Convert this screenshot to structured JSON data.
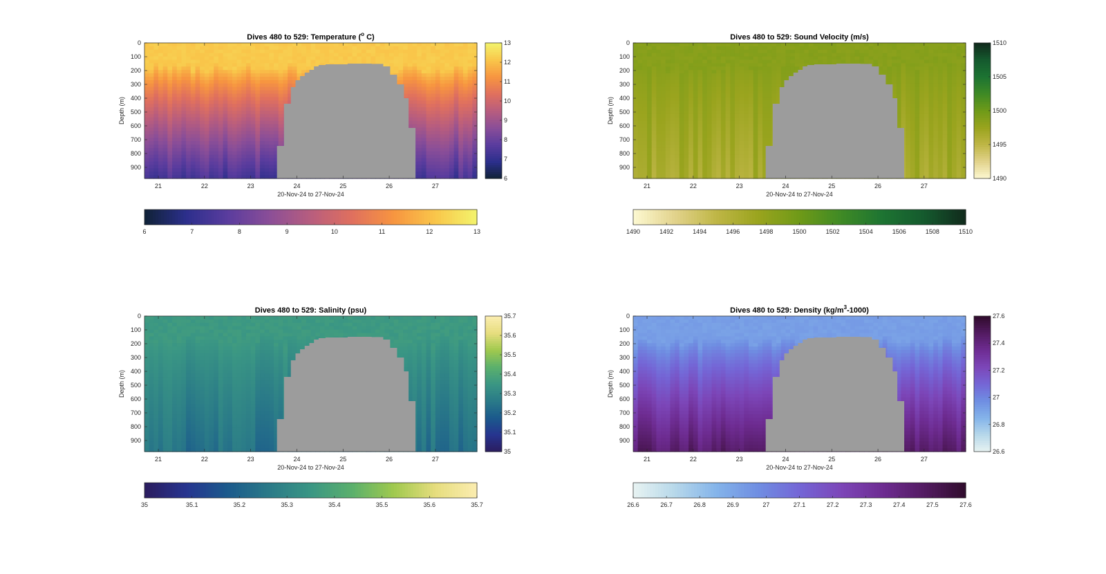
{
  "chart_data": [
    {
      "type": "heatmap",
      "title": "Dives 480 to 529: Temperature (",
      "title_degree": "o",
      "title_suffix": " C)",
      "xlabel": "20-Nov-24 to 27-Nov-24",
      "ylabel": "Depth (m)",
      "xlim": [
        20.7,
        27.9
      ],
      "ylim": [
        0,
        980
      ],
      "xticks": [
        21,
        22,
        23,
        24,
        25,
        26,
        27
      ],
      "yticks": [
        0,
        100,
        200,
        300,
        400,
        500,
        600,
        700,
        800,
        900
      ],
      "clim": [
        6,
        13
      ],
      "colorbar_right_ticks": [
        "6",
        "7",
        "8",
        "9",
        "10",
        "11",
        "12",
        "13"
      ],
      "colorbar_bottom_ticks": [
        "6",
        "7",
        "8",
        "9",
        "10",
        "11",
        "12",
        "13"
      ],
      "colormap": [
        "#0f2236",
        "#2c2f8c",
        "#5a3c9e",
        "#8a4e98",
        "#b85d7e",
        "#e0705e",
        "#f79540",
        "#f9c64a",
        "#f3f36c"
      ],
      "surface_value": 12.2,
      "mixed_layer_depth": 180,
      "deep_value": 7.4
    },
    {
      "type": "heatmap",
      "title": "Dives 480 to 529: Sound Velocity (m/s)",
      "xlabel": "20-Nov-24 to 27-Nov-24",
      "ylabel": "Depth (m)",
      "xlim": [
        20.7,
        27.9
      ],
      "ylim": [
        0,
        980
      ],
      "xticks": [
        21,
        22,
        23,
        24,
        25,
        26,
        27
      ],
      "yticks": [
        0,
        100,
        200,
        300,
        400,
        500,
        600,
        700,
        800,
        900
      ],
      "clim": [
        1490,
        1510
      ],
      "colorbar_right_ticks": [
        "1490",
        "1495",
        "1500",
        "1505",
        "1510"
      ],
      "colorbar_bottom_ticks": [
        "1490",
        "1492",
        "1494",
        "1496",
        "1498",
        "1500",
        "1502",
        "1504",
        "1506",
        "1508",
        "1510"
      ],
      "colormap": [
        "#fdf9d2",
        "#e2d38c",
        "#bfb646",
        "#9aa41e",
        "#6f9a18",
        "#3f8a25",
        "#1d7432",
        "#155a2e",
        "#112a1c"
      ],
      "surface_value": 1498.6,
      "mixed_layer_depth": 180,
      "deep_value": 1496.5
    },
    {
      "type": "heatmap",
      "title": "Dives 480 to 529: Salinity (psu)",
      "xlabel": "20-Nov-24 to 27-Nov-24",
      "ylabel": "Depth (m)",
      "xlim": [
        20.7,
        27.9
      ],
      "ylim": [
        0,
        980
      ],
      "xticks": [
        21,
        22,
        23,
        24,
        25,
        26,
        27
      ],
      "yticks": [
        0,
        100,
        200,
        300,
        400,
        500,
        600,
        700,
        800,
        900
      ],
      "clim": [
        35,
        35.7
      ],
      "colorbar_right_ticks": [
        "35",
        "35.1",
        "35.2",
        "35.3",
        "35.4",
        "35.5",
        "35.6",
        "35.7"
      ],
      "colorbar_bottom_ticks": [
        "35",
        "35.1",
        "35.2",
        "35.3",
        "35.4",
        "35.5",
        "35.6",
        "35.7"
      ],
      "colormap": [
        "#2b1c5e",
        "#26348f",
        "#1b5a8c",
        "#2a7a88",
        "#3a9684",
        "#5bb06c",
        "#a0c94e",
        "#e6dd7e",
        "#fbedb0"
      ],
      "surface_value": 35.36,
      "mixed_layer_depth": 180,
      "deep_value": 35.24
    },
    {
      "type": "heatmap",
      "title": "Dives 480 to 529: Density (kg/m",
      "title_superscript": "3",
      "title_suffix": "-1000)",
      "xlabel": "20-Nov-24 to 27-Nov-24",
      "ylabel": "Depth (m)",
      "xlim": [
        20.7,
        27.9
      ],
      "ylim": [
        0,
        980
      ],
      "xticks": [
        21,
        22,
        23,
        24,
        25,
        26,
        27
      ],
      "yticks": [
        0,
        100,
        200,
        300,
        400,
        500,
        600,
        700,
        800,
        900
      ],
      "clim": [
        26.6,
        27.6
      ],
      "colorbar_right_ticks": [
        "26.6",
        "26.8",
        "27",
        "27.2",
        "27.4",
        "27.6"
      ],
      "colorbar_bottom_ticks": [
        "26.6",
        "26.7",
        "26.8",
        "26.9",
        "27",
        "27.1",
        "27.2",
        "27.3",
        "27.4",
        "27.5",
        "27.6"
      ],
      "colormap": [
        "#e8f3f2",
        "#b7d8ea",
        "#84b4ea",
        "#6f8ee2",
        "#7466d6",
        "#7c46b8",
        "#6e2c92",
        "#531b62",
        "#300c2c"
      ],
      "surface_value": 26.92,
      "mixed_layer_depth": 180,
      "deep_value": 27.45
    }
  ],
  "nodata": {
    "color": "#9c9c9c",
    "x_start": 23.57,
    "x_end": 26.57,
    "profile": [
      [
        23.57,
        745
      ],
      [
        23.72,
        440
      ],
      [
        23.87,
        320
      ],
      [
        23.97,
        270
      ],
      [
        24.07,
        240
      ],
      [
        24.17,
        215
      ],
      [
        24.27,
        195
      ],
      [
        24.37,
        170
      ],
      [
        24.47,
        160
      ],
      [
        24.62,
        155
      ],
      [
        25.1,
        150
      ],
      [
        25.62,
        152
      ],
      [
        25.87,
        170
      ],
      [
        26.02,
        230
      ],
      [
        26.17,
        300
      ],
      [
        26.32,
        400
      ],
      [
        26.42,
        615
      ],
      [
        26.57,
        980
      ]
    ]
  }
}
